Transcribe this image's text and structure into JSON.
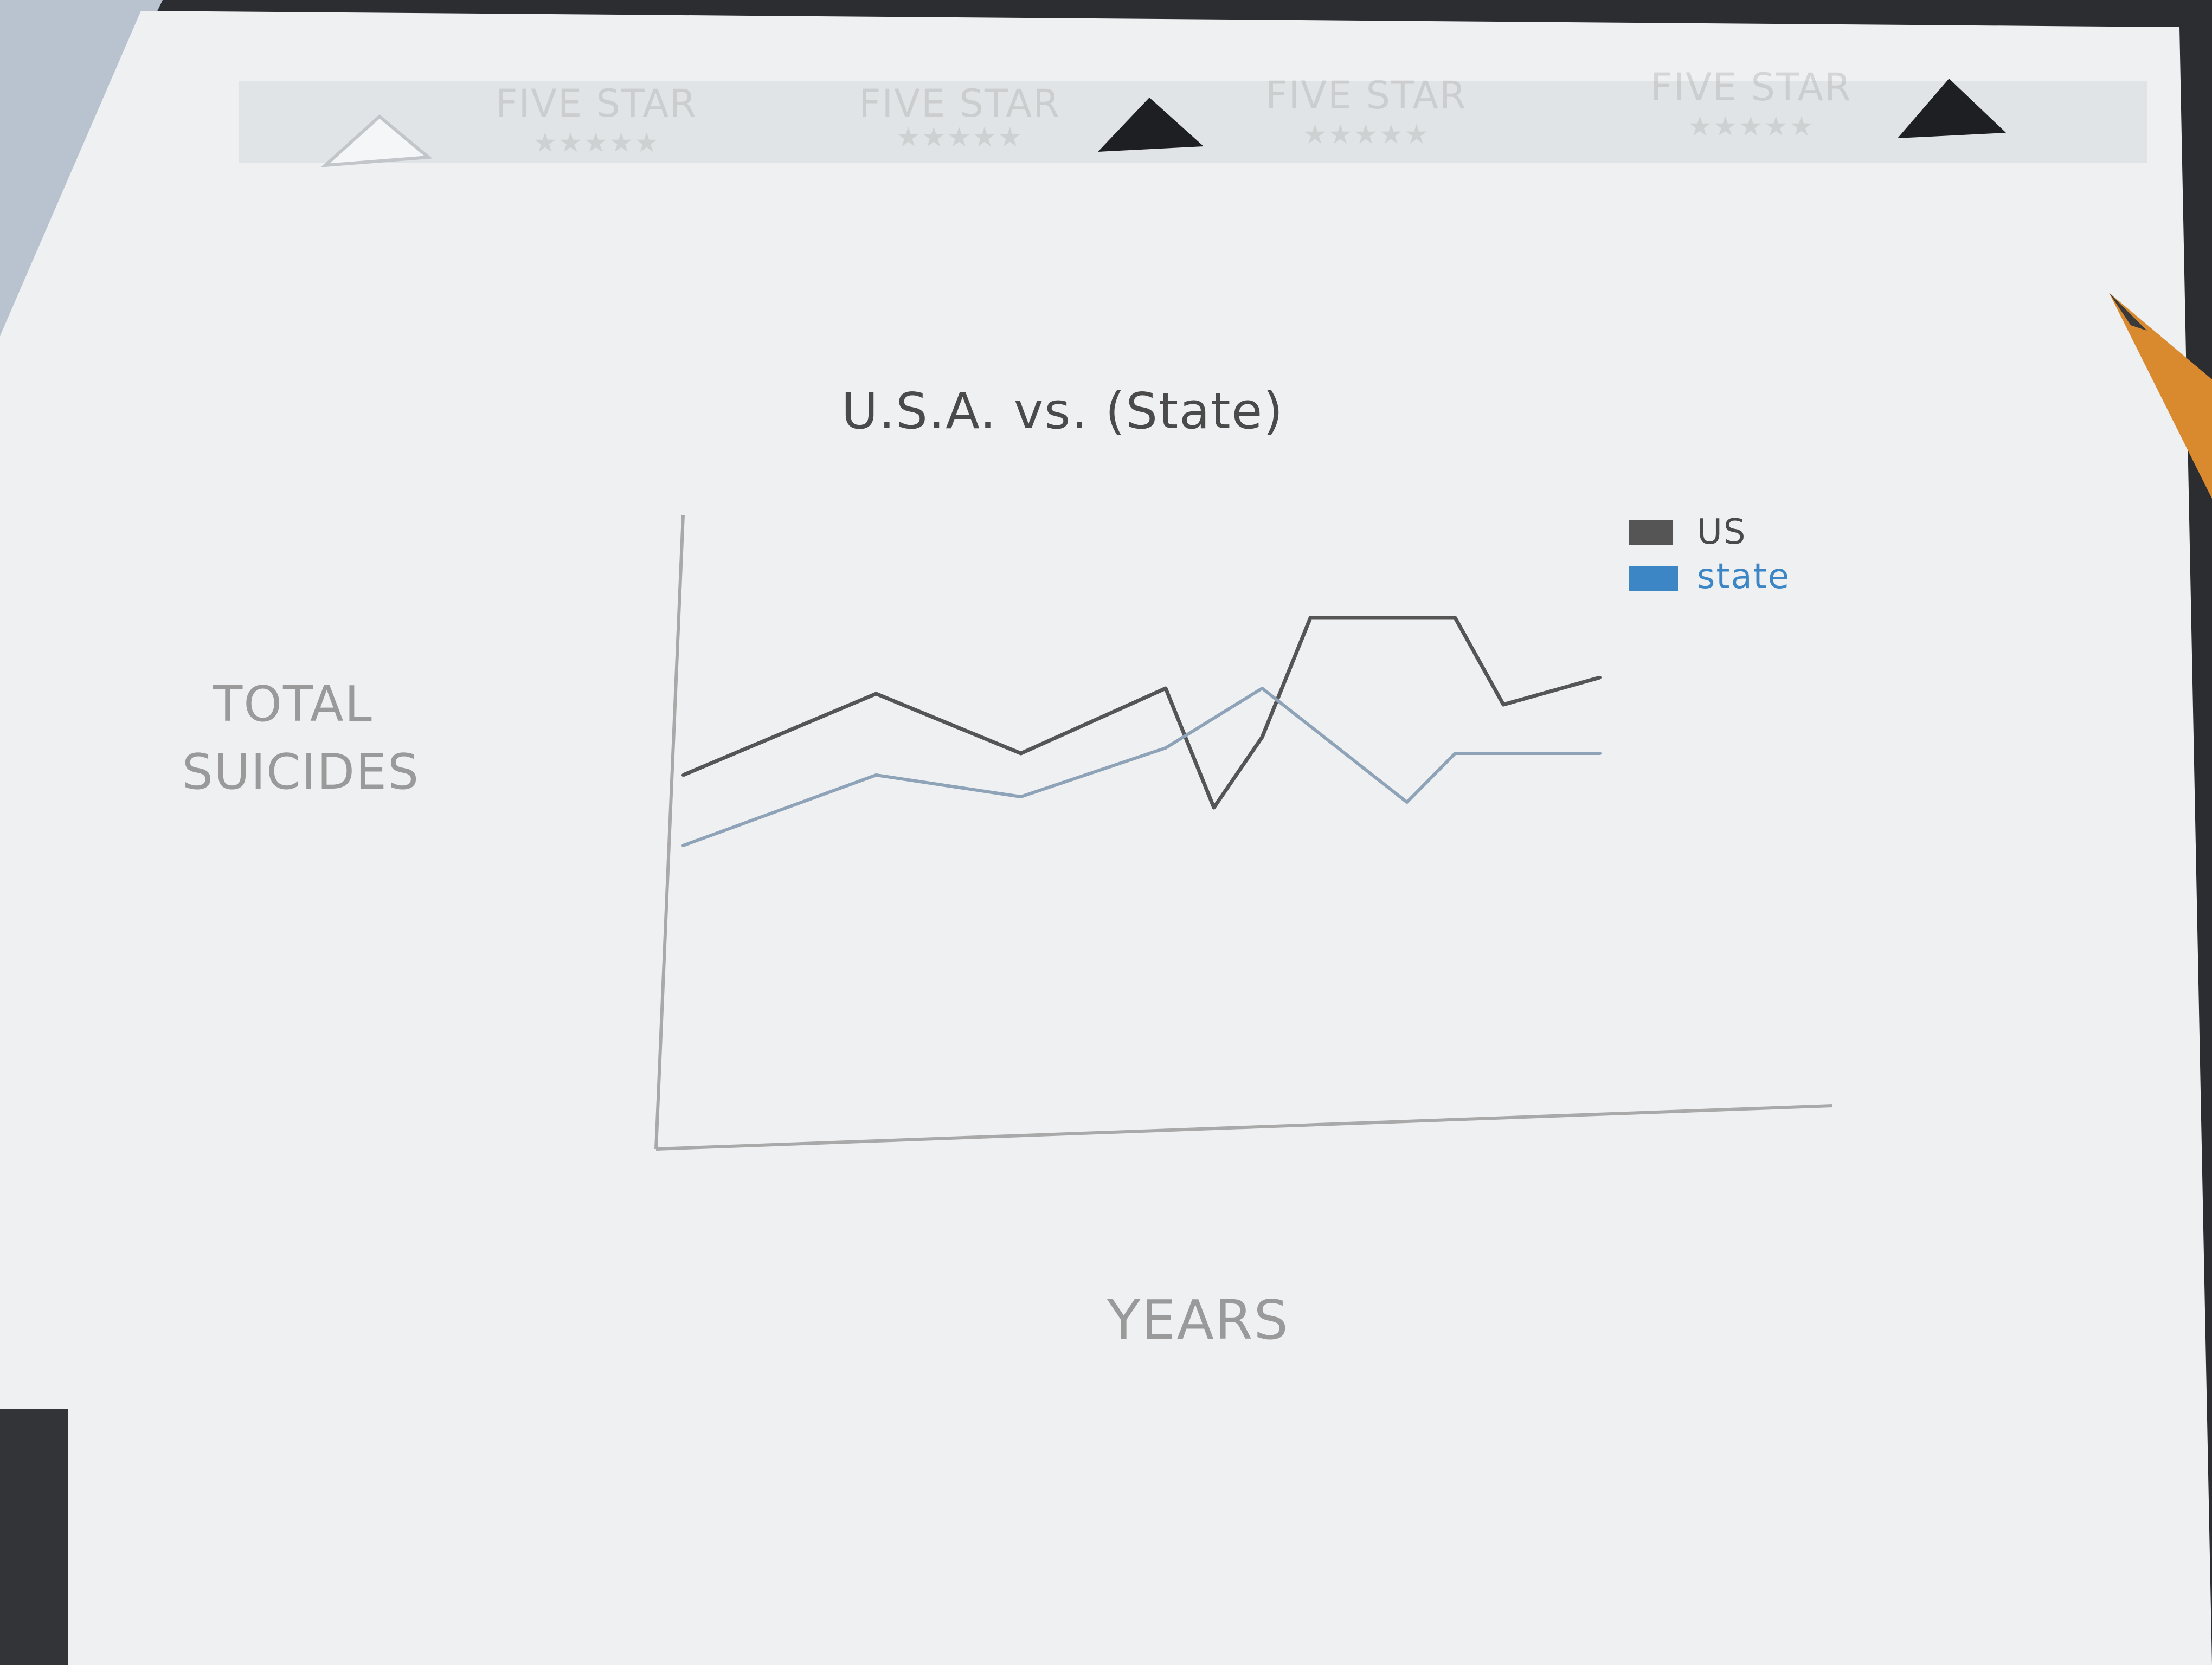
{
  "header_print": {
    "labels": [
      "FIVE STAR",
      "FIVE STAR",
      "FIVE STAR",
      "FIVE STAR"
    ],
    "stars": "★★★★★"
  },
  "chart_data": {
    "type": "line",
    "title": "U.S.A. vs. (State)",
    "xlabel": "YEARS",
    "ylabel": "TOTAL SUICIDES",
    "ylabel_lines": [
      "TOTAL",
      "SUICIDES"
    ],
    "xlim": [
      0,
      20
    ],
    "ylim": [
      0,
      100
    ],
    "grid": false,
    "legend_position": "top-right",
    "series": [
      {
        "name": "US",
        "color": "#555555",
        "x": [
          0,
          4,
          7,
          10,
          11,
          12,
          13,
          16,
          17,
          19
        ],
        "y": [
          57,
          72,
          61,
          73,
          51,
          64,
          86,
          86,
          70,
          75
        ]
      },
      {
        "name": "state",
        "color": "#8fa3b8",
        "x": [
          0,
          4,
          7,
          10,
          12,
          15,
          16,
          19
        ],
        "y": [
          44,
          57,
          53,
          62,
          73,
          52,
          61,
          61
        ]
      }
    ]
  },
  "colors": {
    "paper": "#eef0f2",
    "pencil": "#555555",
    "blue_pen": "#3d86c6",
    "background": "#2b2d31"
  }
}
